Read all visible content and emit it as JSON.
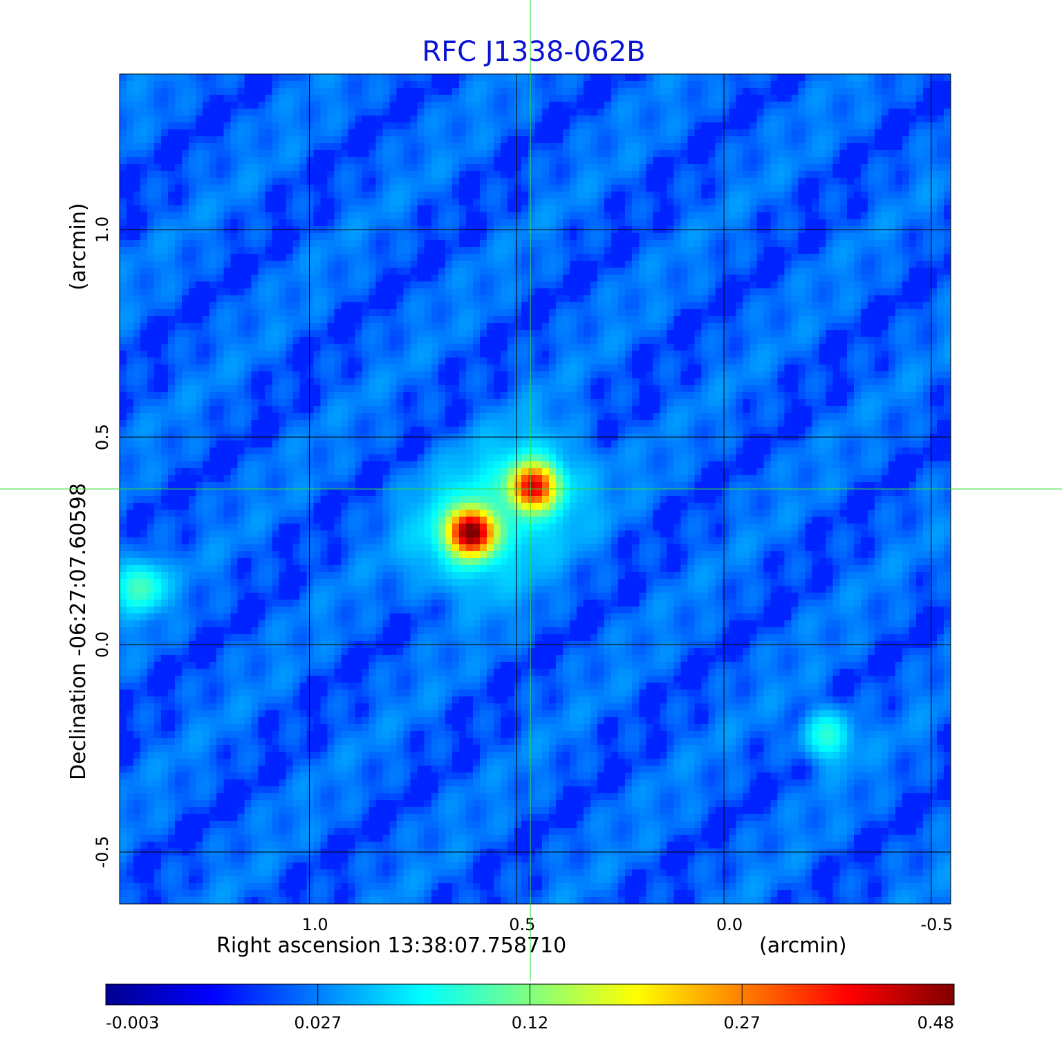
{
  "chart_data": {
    "type": "heatmap",
    "title": "RFC J1338-062B",
    "xlabel": "Right ascension  13:38:07.758710",
    "xunit": "(arcmin)",
    "ylabel": "Declination  -06:27:07.60598",
    "yunit": "(arcmin)",
    "x_reversed": true,
    "xlim": [
      1.458,
      -0.547
    ],
    "ylim": [
      -0.625,
      1.375
    ],
    "x_ticks": [
      {
        "value": 1.0,
        "label": "1.0"
      },
      {
        "value": 0.5,
        "label": "0.5"
      },
      {
        "value": 0.0,
        "label": "0.0"
      },
      {
        "value": -0.5,
        "label": "-0.5"
      }
    ],
    "y_ticks": [
      {
        "value": 1.0,
        "label": "1.0"
      },
      {
        "value": 0.5,
        "label": "0.5"
      },
      {
        "value": 0.0,
        "label": "0.0"
      },
      {
        "value": -0.5,
        "label": "-0.5"
      }
    ],
    "grid": true,
    "crosshair": {
      "x": 0.467,
      "y": 0.375,
      "color": "#33dd33"
    },
    "colormap": "jet",
    "colorbar": {
      "position": "bottom",
      "ticks": [
        {
          "value": -0.003,
          "label": "-0.003"
        },
        {
          "value": 0.027,
          "label": "0.027"
        },
        {
          "value": 0.12,
          "label": "0.12"
        },
        {
          "value": 0.27,
          "label": "0.27"
        },
        {
          "value": 0.48,
          "label": "0.48"
        }
      ]
    },
    "sources": [
      {
        "x": 0.46,
        "y": 0.38,
        "peak": 0.36
      },
      {
        "x": 0.61,
        "y": 0.27,
        "peak": 0.48
      },
      {
        "x": 1.41,
        "y": 0.14,
        "peak": 0.05
      },
      {
        "x": -0.25,
        "y": -0.22,
        "peak": 0.04
      }
    ]
  }
}
